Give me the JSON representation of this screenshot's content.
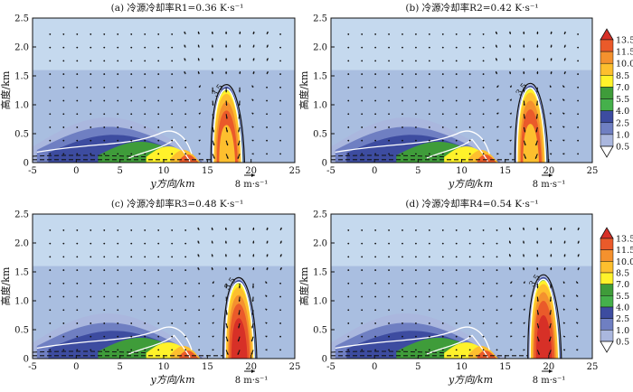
{
  "chart_data": [
    {
      "type": "filled-contour-with-wind-vectors",
      "title": "(a) 冷源冷却率R1=0.36 K·s⁻¹",
      "xlabel": "y方向/km",
      "ylabel": "高度/km",
      "xlim": [
        -5,
        25
      ],
      "ylim": [
        0,
        2.5
      ],
      "xticks": [
        "-5",
        "0",
        "5",
        "10",
        "15",
        "20",
        "25"
      ],
      "yticks": [
        "0",
        "0.5",
        "1.0",
        "1.5",
        "2.0",
        "2.5"
      ],
      "ref_vector": "8 m·s⁻¹",
      "contour_label": "3.5",
      "core_peak_y_km": 17.2,
      "core_top_km": 1.35
    },
    {
      "type": "filled-contour-with-wind-vectors",
      "title": "(b) 冷源冷却率R2=0.42 K·s⁻¹",
      "xlabel": "y方向/km",
      "ylabel": "高度/km",
      "xlim": [
        -5,
        25
      ],
      "ylim": [
        0,
        2.5
      ],
      "xticks": [
        "-5",
        "0",
        "5",
        "10",
        "15",
        "20",
        "25"
      ],
      "yticks": [
        "0",
        "0.5",
        "1.0",
        "1.5",
        "2.0",
        "2.5"
      ],
      "ref_vector": "8 m·s⁻¹",
      "contour_label": "3.5",
      "core_peak_y_km": 17.9,
      "core_top_km": 1.37
    },
    {
      "type": "filled-contour-with-wind-vectors",
      "title": "(c) 冷源冷却率R3=0.48 K·s⁻¹",
      "xlabel": "y方向/km",
      "ylabel": "高度/km",
      "xlim": [
        -5,
        25
      ],
      "ylim": [
        0,
        2.5
      ],
      "xticks": [
        "-5",
        "0",
        "5",
        "10",
        "15",
        "20",
        "25"
      ],
      "yticks": [
        "0",
        "0.5",
        "1.0",
        "1.5",
        "2.0",
        "2.5"
      ],
      "ref_vector": "8 m·s⁻¹",
      "contour_label": "3.5",
      "core_peak_y_km": 18.6,
      "core_top_km": 1.4
    },
    {
      "type": "filled-contour-with-wind-vectors",
      "title": "(d) 冷源冷却率R4=0.54 K·s⁻¹",
      "xlabel": "y方向/km",
      "ylabel": "高度/km",
      "xlim": [
        -5,
        25
      ],
      "ylim": [
        0,
        2.5
      ],
      "xticks": [
        "-5",
        "0",
        "5",
        "10",
        "15",
        "20",
        "25"
      ],
      "yticks": [
        "0",
        "0.5",
        "1.0",
        "1.5",
        "2.0",
        "2.5"
      ],
      "ref_vector": "8 m·s⁻¹",
      "contour_label": "3.5",
      "core_peak_y_km": 19.4,
      "core_top_km": 1.45
    }
  ],
  "colorbar": {
    "levels": [
      "13.5",
      "11.5",
      "10.0",
      "8.5",
      "7.0",
      "5.5",
      "4.0",
      "2.5",
      "1.0",
      "0.5"
    ],
    "colors": [
      "#d73027",
      "#ea5a2a",
      "#f4912e",
      "#fdbf2e",
      "#fff22a",
      "#3f9c3a",
      "#45b04b",
      "#3d4ca0",
      "#6f7fc2",
      "#aab7de"
    ]
  },
  "colors": {
    "sky_low": "#a9bee0",
    "sky_high": "#c5d9ee"
  }
}
